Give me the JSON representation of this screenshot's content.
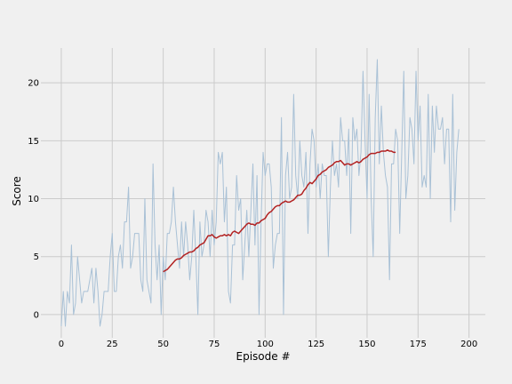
{
  "chart_data": {
    "type": "line",
    "title": "",
    "xlabel": "Episode #",
    "ylabel": "Score",
    "xlim": [
      -10,
      208
    ],
    "ylim": [
      -2,
      23
    ],
    "xticks": [
      0,
      25,
      50,
      75,
      100,
      125,
      150,
      175,
      200
    ],
    "yticks": [
      0,
      5,
      10,
      15,
      20
    ],
    "grid": true,
    "colors": {
      "raw": "#a9c1d6",
      "average": "#b22222",
      "grid": "#cbcbcb",
      "background": "#f0f0f0"
    },
    "series": [
      {
        "x_start": 0,
        "values": [
          -1,
          2,
          -1,
          2,
          1,
          6,
          0,
          1,
          5,
          3,
          1,
          2,
          2,
          2,
          3,
          4,
          1,
          4,
          2,
          -1,
          0,
          2,
          2,
          2,
          5,
          7,
          2,
          2,
          5,
          6,
          4,
          8,
          8,
          11,
          4,
          5,
          7,
          7,
          7,
          3,
          2,
          10,
          3,
          2,
          1,
          13,
          6,
          3,
          6,
          0,
          5,
          3,
          7,
          7,
          8,
          11,
          8,
          6,
          4,
          8,
          5,
          8,
          6,
          3,
          5,
          9,
          5,
          0,
          8,
          5,
          6,
          9,
          8,
          5,
          9,
          6,
          8,
          14,
          13,
          14,
          8,
          11,
          2,
          1,
          6,
          6,
          12,
          9,
          10,
          3,
          6,
          9,
          5,
          9,
          13,
          6,
          12,
          0,
          8,
          14,
          12,
          13,
          13,
          11,
          4,
          6,
          7,
          7,
          17,
          0,
          12,
          14,
          10,
          11,
          19,
          12,
          10,
          15,
          12,
          11,
          14,
          7,
          13,
          16,
          15,
          11,
          13,
          10,
          13,
          12,
          12,
          5,
          11,
          15,
          12,
          13,
          11,
          17,
          15,
          15,
          12,
          16,
          7,
          17,
          15,
          16,
          12,
          14,
          21,
          15,
          10,
          19,
          10,
          5,
          17,
          22,
          13,
          18,
          14,
          12,
          11,
          3,
          13,
          13,
          16,
          15,
          7,
          14,
          21,
          10,
          12,
          17,
          16,
          13,
          21,
          15,
          18,
          11,
          12,
          11,
          19,
          10,
          18,
          14,
          18,
          16,
          16,
          17,
          13,
          16,
          16,
          8,
          19,
          9,
          14,
          16
        ]
      },
      {
        "x_start": 50,
        "values": [
          3.7,
          3.8,
          3.9,
          4.1,
          4.3,
          4.5,
          4.7,
          4.8,
          4.8,
          4.9,
          5.1,
          5.2,
          5.3,
          5.4,
          5.4,
          5.5,
          5.7,
          5.8,
          6.0,
          6.1,
          6.2,
          6.5,
          6.8,
          6.8,
          6.9,
          6.7,
          6.6,
          6.7,
          6.8,
          6.8,
          6.9,
          6.8,
          6.9,
          6.8,
          7.1,
          7.2,
          7.1,
          7.0,
          7.2,
          7.4,
          7.6,
          7.8,
          7.9,
          7.8,
          7.8,
          7.7,
          7.9,
          7.9,
          8.1,
          8.2,
          8.3,
          8.6,
          8.8,
          8.9,
          9.1,
          9.3,
          9.4,
          9.4,
          9.6,
          9.7,
          9.8,
          9.7,
          9.7,
          9.8,
          9.9,
          10.1,
          10.3,
          10.3,
          10.4,
          10.7,
          10.9,
          11.2,
          11.4,
          11.3,
          11.5,
          11.7,
          12.0,
          12.1,
          12.3,
          12.4,
          12.5,
          12.7,
          12.8,
          12.9,
          13.1,
          13.2,
          13.2,
          13.3,
          13.1,
          12.9,
          13.0,
          13.0,
          12.9,
          13.0,
          13.1,
          13.2,
          13.1,
          13.2,
          13.4,
          13.5,
          13.6,
          13.8,
          13.9,
          13.9,
          13.9,
          14.0,
          14.0,
          14.1,
          14.1,
          14.1,
          14.2,
          14.1,
          14.1,
          14.0,
          14.0
        ]
      }
    ]
  }
}
